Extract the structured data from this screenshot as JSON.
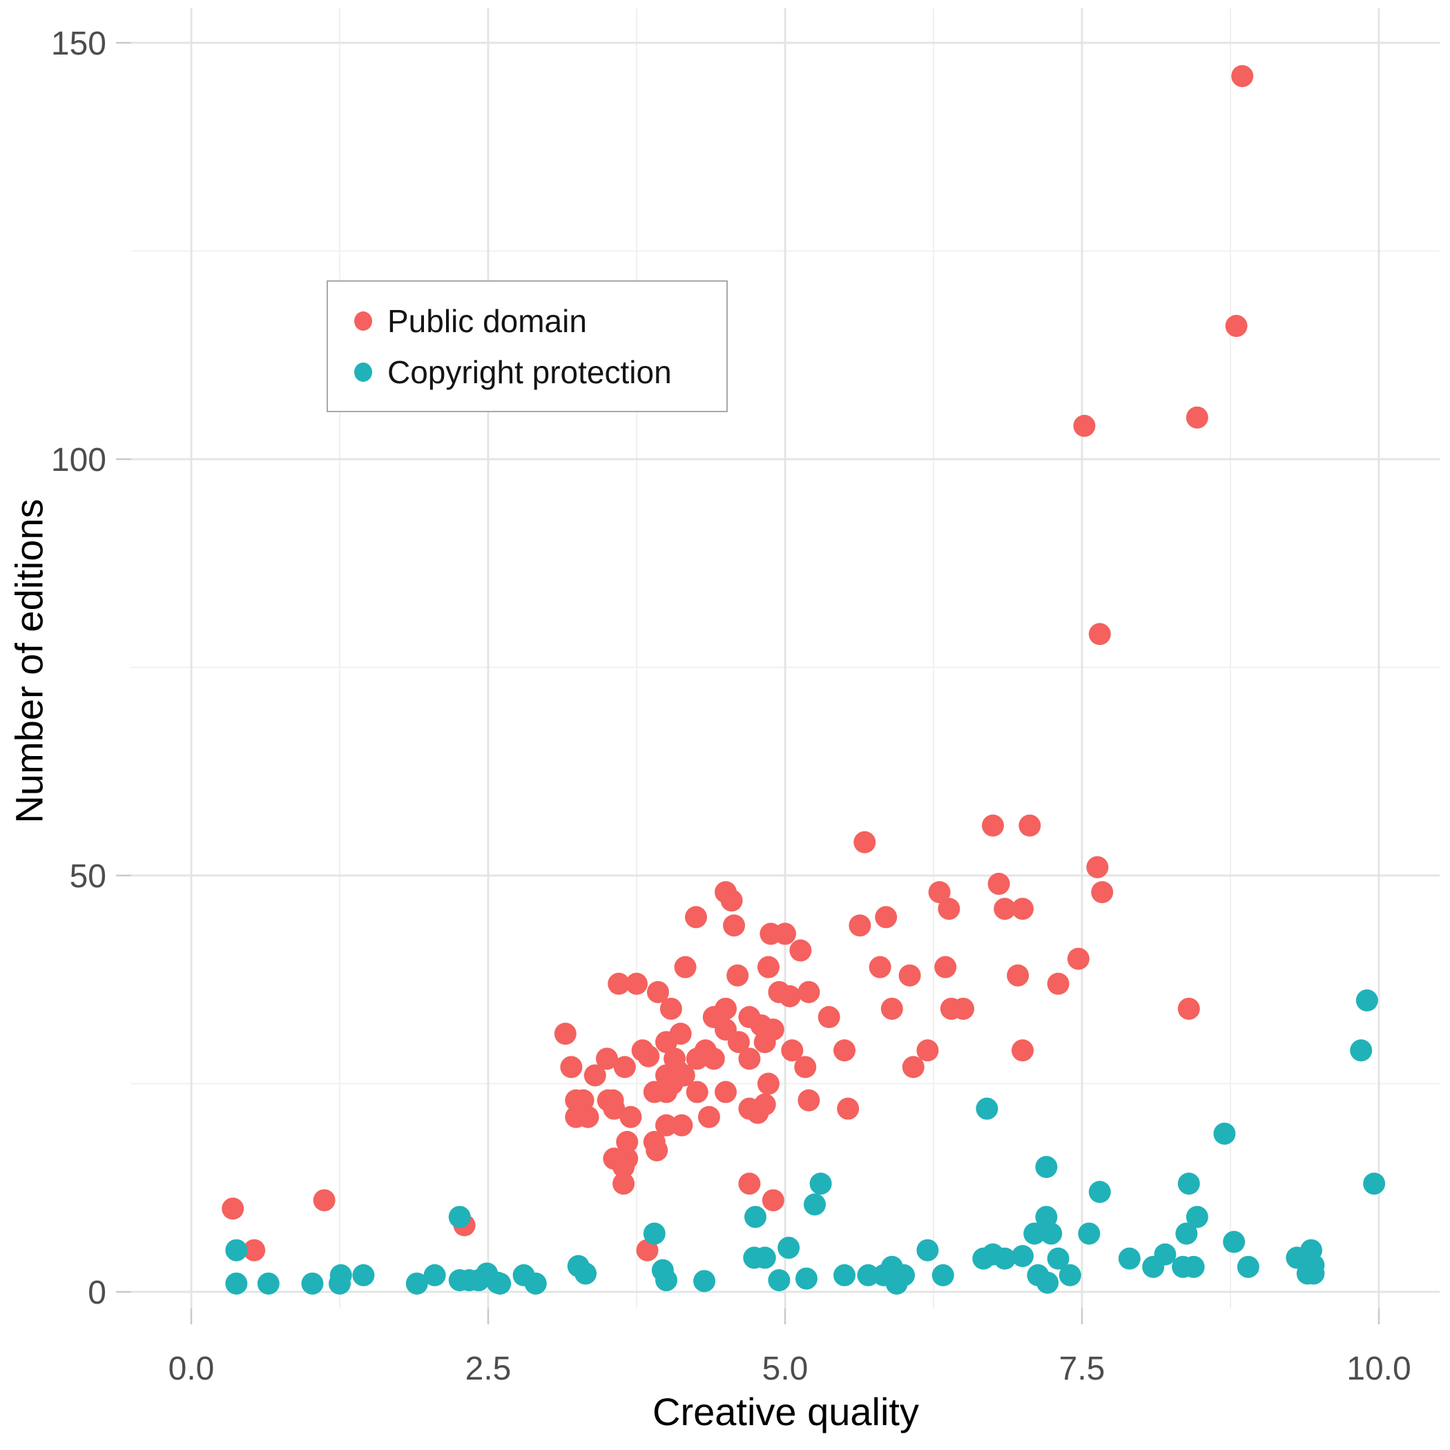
{
  "chart_data": {
    "type": "scatter",
    "title": "",
    "xlabel": "Creative quality",
    "ylabel": "Number of editions",
    "xlim": [
      0,
      10
    ],
    "ylim": [
      0,
      150
    ],
    "grid": "on",
    "legend_position": "inside-top-left",
    "x_ticks": {
      "values": [
        0,
        2.5,
        5,
        7.5,
        10
      ],
      "labels": [
        "0.0",
        "2.5",
        "5.0",
        "7.5",
        "10.0"
      ]
    },
    "x_minor_ticks": [
      1.25,
      3.75,
      6.25,
      8.75
    ],
    "y_ticks": {
      "values": [
        0,
        50,
        100,
        150
      ],
      "labels": [
        "0",
        "50",
        "100",
        "150"
      ]
    },
    "y_minor_ticks": [
      25,
      75,
      125
    ],
    "series": [
      {
        "name": "Public domain",
        "color": "#F4615E",
        "points": [
          [
            8.85,
            146
          ],
          [
            8.8,
            116
          ],
          [
            8.47,
            105
          ],
          [
            7.52,
            104
          ],
          [
            7.65,
            79
          ],
          [
            6.75,
            56
          ],
          [
            7.06,
            56
          ],
          [
            5.67,
            54
          ],
          [
            7.63,
            51
          ],
          [
            6.8,
            49
          ],
          [
            6.3,
            48
          ],
          [
            7.67,
            48
          ],
          [
            6.38,
            46
          ],
          [
            6.85,
            46
          ],
          [
            7.0,
            46
          ],
          [
            5.85,
            45
          ],
          [
            5.63,
            44
          ],
          [
            7.47,
            40
          ],
          [
            5.8,
            39
          ],
          [
            6.35,
            39
          ],
          [
            6.05,
            38
          ],
          [
            6.96,
            38
          ],
          [
            7.3,
            37
          ],
          [
            5.9,
            34
          ],
          [
            6.4,
            34
          ],
          [
            6.5,
            34
          ],
          [
            5.37,
            33
          ],
          [
            5.5,
            29
          ],
          [
            6.2,
            29
          ],
          [
            7.0,
            29
          ],
          [
            6.08,
            27
          ],
          [
            5.53,
            22
          ],
          [
            8.4,
            34
          ],
          [
            4.5,
            48
          ],
          [
            4.55,
            47
          ],
          [
            4.25,
            45
          ],
          [
            4.57,
            44
          ],
          [
            4.88,
            43
          ],
          [
            5.0,
            43
          ],
          [
            5.13,
            41
          ],
          [
            4.16,
            39
          ],
          [
            4.86,
            39
          ],
          [
            4.6,
            38
          ],
          [
            3.6,
            37
          ],
          [
            3.75,
            37
          ],
          [
            3.93,
            36
          ],
          [
            4.95,
            36
          ],
          [
            5.04,
            35.5
          ],
          [
            5.2,
            36
          ],
          [
            4.04,
            34
          ],
          [
            4.5,
            34
          ],
          [
            4.4,
            33
          ],
          [
            4.7,
            33
          ],
          [
            4.8,
            32
          ],
          [
            4.9,
            31.5
          ],
          [
            3.15,
            31
          ],
          [
            4.12,
            31
          ],
          [
            4.0,
            30
          ],
          [
            4.5,
            31.5
          ],
          [
            4.61,
            30
          ],
          [
            4.83,
            30
          ],
          [
            4.33,
            29
          ],
          [
            3.8,
            29
          ],
          [
            3.85,
            28.3
          ],
          [
            4.07,
            28
          ],
          [
            3.5,
            28
          ],
          [
            4.7,
            28
          ],
          [
            4.26,
            28
          ],
          [
            4.4,
            28
          ],
          [
            3.65,
            27
          ],
          [
            3.2,
            27
          ],
          [
            4.15,
            26
          ],
          [
            4.0,
            26
          ],
          [
            4.05,
            25
          ],
          [
            4.1,
            26.5
          ],
          [
            3.4,
            26
          ],
          [
            4.26,
            24
          ],
          [
            3.9,
            24
          ],
          [
            4.0,
            24
          ],
          [
            5.06,
            29
          ],
          [
            5.17,
            27
          ],
          [
            4.86,
            25
          ],
          [
            3.3,
            23
          ],
          [
            3.51,
            23
          ],
          [
            3.55,
            23
          ],
          [
            3.24,
            23
          ],
          [
            4.5,
            24
          ],
          [
            5.2,
            23
          ],
          [
            3.34,
            21
          ],
          [
            3.24,
            21
          ],
          [
            3.56,
            22
          ],
          [
            3.7,
            21
          ],
          [
            4.0,
            20
          ],
          [
            4.13,
            20
          ],
          [
            4.36,
            21
          ],
          [
            4.7,
            22
          ],
          [
            4.77,
            21.5
          ],
          [
            4.83,
            22.5
          ],
          [
            3.9,
            18
          ],
          [
            3.67,
            18
          ],
          [
            3.92,
            17
          ],
          [
            3.56,
            16
          ],
          [
            3.67,
            16
          ],
          [
            3.64,
            15
          ],
          [
            3.64,
            13
          ],
          [
            4.7,
            13
          ],
          [
            4.9,
            11
          ],
          [
            3.84,
            5
          ],
          [
            0.35,
            10
          ],
          [
            1.12,
            11
          ],
          [
            0.53,
            5
          ],
          [
            2.3,
            8
          ]
        ]
      },
      {
        "name": "Copyright protection",
        "color": "#20B2B8",
        "points": [
          [
            0.38,
            5
          ],
          [
            0.38,
            1
          ],
          [
            0.65,
            1
          ],
          [
            1.02,
            1
          ],
          [
            1.26,
            2
          ],
          [
            1.25,
            1
          ],
          [
            1.45,
            2
          ],
          [
            1.9,
            1
          ],
          [
            2.05,
            2
          ],
          [
            2.26,
            9
          ],
          [
            2.49,
            2.2
          ],
          [
            2.58,
            1.1
          ],
          [
            2.34,
            1.4
          ],
          [
            2.42,
            1.4
          ],
          [
            2.26,
            1.4
          ],
          [
            2.6,
            1
          ],
          [
            2.8,
            2
          ],
          [
            2.9,
            1
          ],
          [
            3.26,
            3.1
          ],
          [
            3.32,
            2.2
          ],
          [
            3.9,
            7
          ],
          [
            3.97,
            2.6
          ],
          [
            4.0,
            1.4
          ],
          [
            4.32,
            1.3
          ],
          [
            4.74,
            4.1
          ],
          [
            4.83,
            4.1
          ],
          [
            5.03,
            5.3
          ],
          [
            4.95,
            1.4
          ],
          [
            5.18,
            1.6
          ],
          [
            4.75,
            9
          ],
          [
            5.3,
            13
          ],
          [
            5.25,
            10.5
          ],
          [
            6.7,
            22
          ],
          [
            7.2,
            15
          ],
          [
            7.65,
            12
          ],
          [
            7.2,
            9
          ],
          [
            7.1,
            7
          ],
          [
            7.24,
            7
          ],
          [
            7.56,
            7
          ],
          [
            6.2,
            5
          ],
          [
            6.75,
            4.5
          ],
          [
            6.67,
            4
          ],
          [
            6.85,
            4
          ],
          [
            7.0,
            4.3
          ],
          [
            7.3,
            4
          ],
          [
            5.5,
            2
          ],
          [
            5.7,
            2
          ],
          [
            5.83,
            2
          ],
          [
            5.9,
            3
          ],
          [
            5.94,
            1
          ],
          [
            6.0,
            2
          ],
          [
            6.33,
            2
          ],
          [
            7.13,
            2
          ],
          [
            7.21,
            1.1
          ],
          [
            7.4,
            2
          ],
          [
            7.9,
            4
          ],
          [
            8.1,
            3
          ],
          [
            8.2,
            4.5
          ],
          [
            9.9,
            35
          ],
          [
            9.85,
            29
          ],
          [
            8.7,
            19
          ],
          [
            8.4,
            13
          ],
          [
            9.96,
            13
          ],
          [
            8.47,
            9
          ],
          [
            8.38,
            7
          ],
          [
            8.78,
            6
          ],
          [
            9.31,
            4.1
          ],
          [
            9.43,
            5
          ],
          [
            9.45,
            3.2
          ],
          [
            9.4,
            2.2
          ],
          [
            9.45,
            2.2
          ],
          [
            8.35,
            3
          ],
          [
            8.44,
            3
          ],
          [
            8.9,
            3
          ]
        ]
      }
    ],
    "style": {
      "grid_major_color": "#e4e4e4",
      "grid_minor_color": "#f0f0f0",
      "tick_mark_color": "#c9c9c9",
      "tick_label_color": "#4d4d4d",
      "point_radius": 16
    }
  }
}
